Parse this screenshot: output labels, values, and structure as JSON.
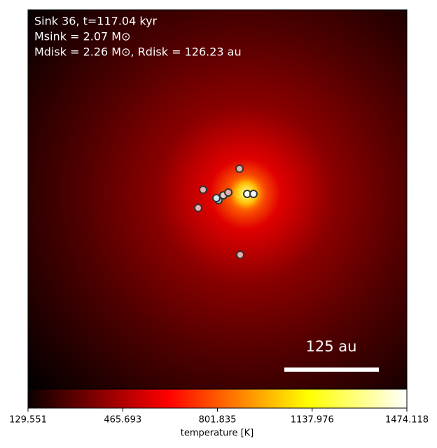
{
  "chart_data": {
    "type": "image",
    "title_lines": [
      "Sink 36, t=117.04 kyr",
      "Msink = 2.07 M⊙",
      "Mdisk = 2.26 M⊙, Rdisk = 126.23 au"
    ],
    "scale_bar_label": "125 au",
    "colormap": "hot",
    "colorbar_label": "temperature [K]",
    "clim": [
      129.551,
      1474.118
    ],
    "cticks": [
      129.551,
      465.693,
      801.835,
      1137.976,
      1474.118
    ]
  }
}
